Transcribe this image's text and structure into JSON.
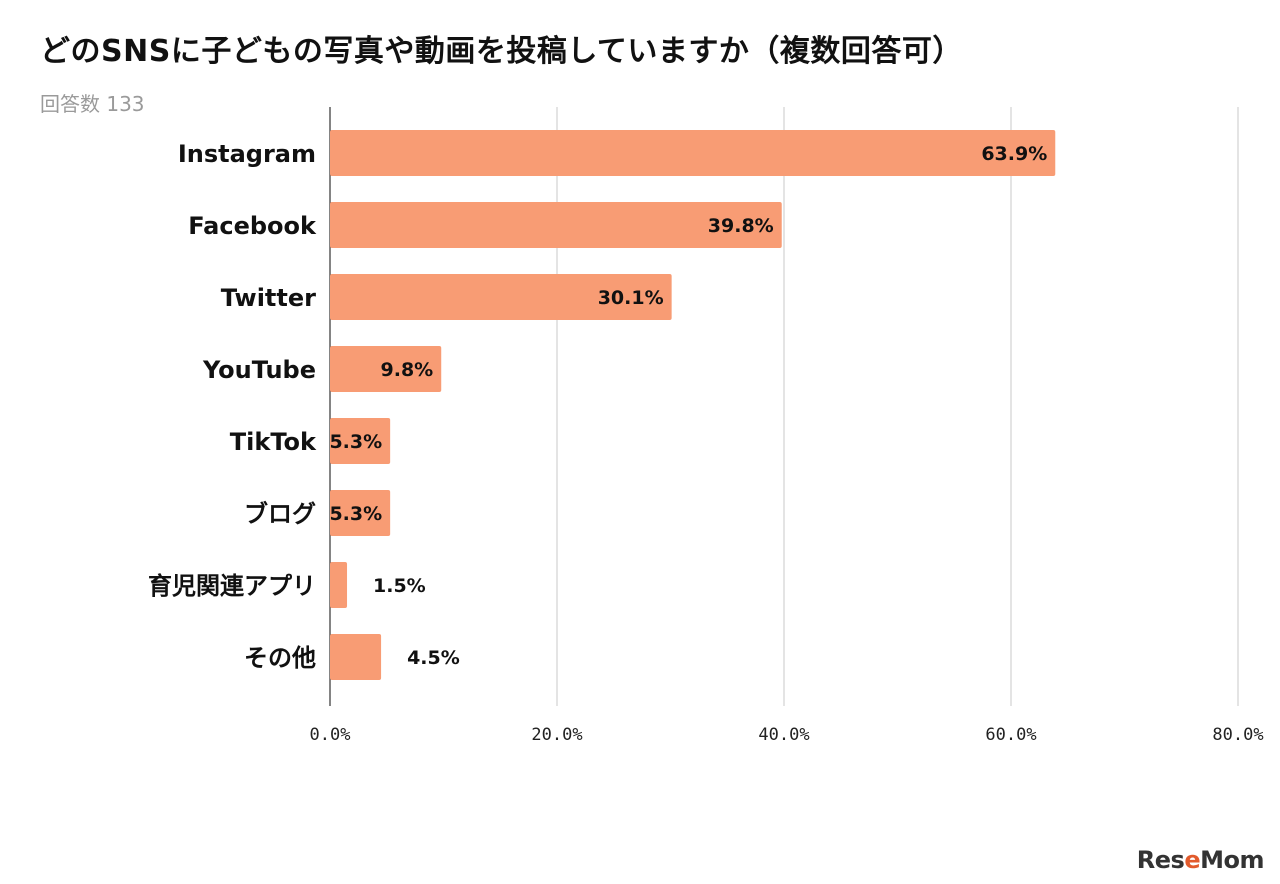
{
  "chart_data": {
    "type": "bar",
    "orientation": "horizontal",
    "title": "どのSNSに子どもの写真や動画を投稿していますか（複数回答可）",
    "subtitle": "回答数 133",
    "categories": [
      "Instagram",
      "Facebook",
      "Twitter",
      "YouTube",
      "TikTok",
      "ブログ",
      "育児関連アプリ",
      "その他"
    ],
    "values": [
      63.9,
      39.8,
      30.1,
      9.8,
      5.3,
      5.3,
      1.5,
      4.5
    ],
    "value_labels": [
      "63.9%",
      "39.8%",
      "30.1%",
      "9.8%",
      "5.3%",
      "5.3%",
      "1.5%",
      "4.5%"
    ],
    "xlim": [
      0,
      80
    ],
    "x_ticks": [
      0,
      20,
      40,
      60,
      80
    ],
    "x_tick_labels": [
      "0.0%",
      "20.0%",
      "40.0%",
      "60.0%",
      "80.0%"
    ],
    "grid": true,
    "bar_color": "#f89c74"
  },
  "logo": "ReseMom"
}
